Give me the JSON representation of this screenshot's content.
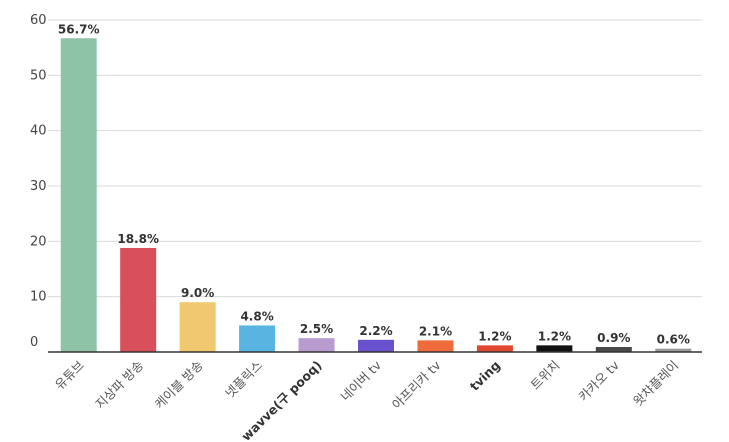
{
  "chart_data": {
    "type": "bar",
    "title": "",
    "xlabel": "",
    "ylabel": "",
    "ylim": [
      0,
      60
    ],
    "yticks": [
      0,
      10,
      20,
      30,
      40,
      50,
      60
    ],
    "grid": true,
    "categories": [
      "유튜브",
      "지상파 방송",
      "케이블 방송",
      "넷플릭스",
      "wavve(구 pooq)",
      "네이버 tv",
      "아프리카 tv",
      "tving",
      "트위치",
      "카카오 tv",
      "왓챠플레이"
    ],
    "bold_categories": [
      "wavve(구 pooq)",
      "tving"
    ],
    "values": [
      56.7,
      18.8,
      9.0,
      4.8,
      2.5,
      2.2,
      2.1,
      1.2,
      1.2,
      0.9,
      0.6
    ],
    "data_labels": [
      "56.7%",
      "18.8%",
      "9.0%",
      "4.8%",
      "2.5%",
      "2.2%",
      "2.1%",
      "1.2%",
      "1.2%",
      "0.9%",
      "0.6%"
    ],
    "colors": [
      "#8ec3a7",
      "#d9505a",
      "#efc870",
      "#5ab4e1",
      "#b99ccf",
      "#6a52cf",
      "#ef6b3c",
      "#e0492f",
      "#111111",
      "#484848",
      "#9a9a9a"
    ]
  }
}
